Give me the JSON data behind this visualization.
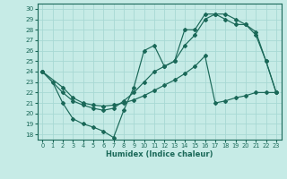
{
  "xlabel": "Humidex (Indice chaleur)",
  "xlim": [
    -0.5,
    23.5
  ],
  "ylim": [
    17.5,
    30.5
  ],
  "xticks": [
    0,
    1,
    2,
    3,
    4,
    5,
    6,
    7,
    8,
    9,
    10,
    11,
    12,
    13,
    14,
    15,
    16,
    17,
    18,
    19,
    20,
    21,
    22,
    23
  ],
  "yticks": [
    18,
    19,
    20,
    21,
    22,
    23,
    24,
    25,
    26,
    27,
    28,
    29,
    30
  ],
  "background_color": "#c6ebe6",
  "grid_color": "#a8d8d4",
  "line_color": "#1a6858",
  "line1_x": [
    0,
    1,
    2,
    3,
    4,
    5,
    6,
    7,
    8,
    9,
    10,
    11,
    12,
    13,
    14,
    15,
    16,
    17,
    18,
    19,
    20,
    21,
    22,
    23
  ],
  "line1_y": [
    24.0,
    23.0,
    21.0,
    19.5,
    19.0,
    18.7,
    18.3,
    17.7,
    20.3,
    22.5,
    26.0,
    26.5,
    24.5,
    25.0,
    28.0,
    28.0,
    29.5,
    29.5,
    29.5,
    29.0,
    28.5,
    27.8,
    25.0,
    22.0
  ],
  "line2_x": [
    0,
    2,
    3,
    4,
    5,
    6,
    7,
    8,
    9,
    10,
    11,
    12,
    13,
    14,
    15,
    16,
    17,
    18,
    19,
    20,
    21,
    22,
    23
  ],
  "line2_y": [
    24.0,
    22.0,
    21.2,
    20.8,
    20.5,
    20.3,
    20.5,
    21.2,
    22.0,
    23.0,
    24.0,
    24.5,
    25.0,
    26.5,
    27.5,
    29.0,
    29.5,
    29.0,
    28.5,
    28.5,
    27.5,
    25.0,
    22.0
  ],
  "line3_x": [
    0,
    2,
    3,
    4,
    5,
    6,
    7,
    8,
    9,
    10,
    11,
    12,
    13,
    14,
    15,
    16,
    17,
    18,
    19,
    20,
    21,
    22,
    23
  ],
  "line3_y": [
    24.0,
    22.5,
    21.5,
    21.0,
    20.8,
    20.7,
    20.8,
    21.0,
    21.3,
    21.7,
    22.2,
    22.7,
    23.2,
    23.8,
    24.5,
    25.5,
    21.0,
    21.2,
    21.5,
    21.7,
    22.0,
    22.0,
    22.0
  ]
}
